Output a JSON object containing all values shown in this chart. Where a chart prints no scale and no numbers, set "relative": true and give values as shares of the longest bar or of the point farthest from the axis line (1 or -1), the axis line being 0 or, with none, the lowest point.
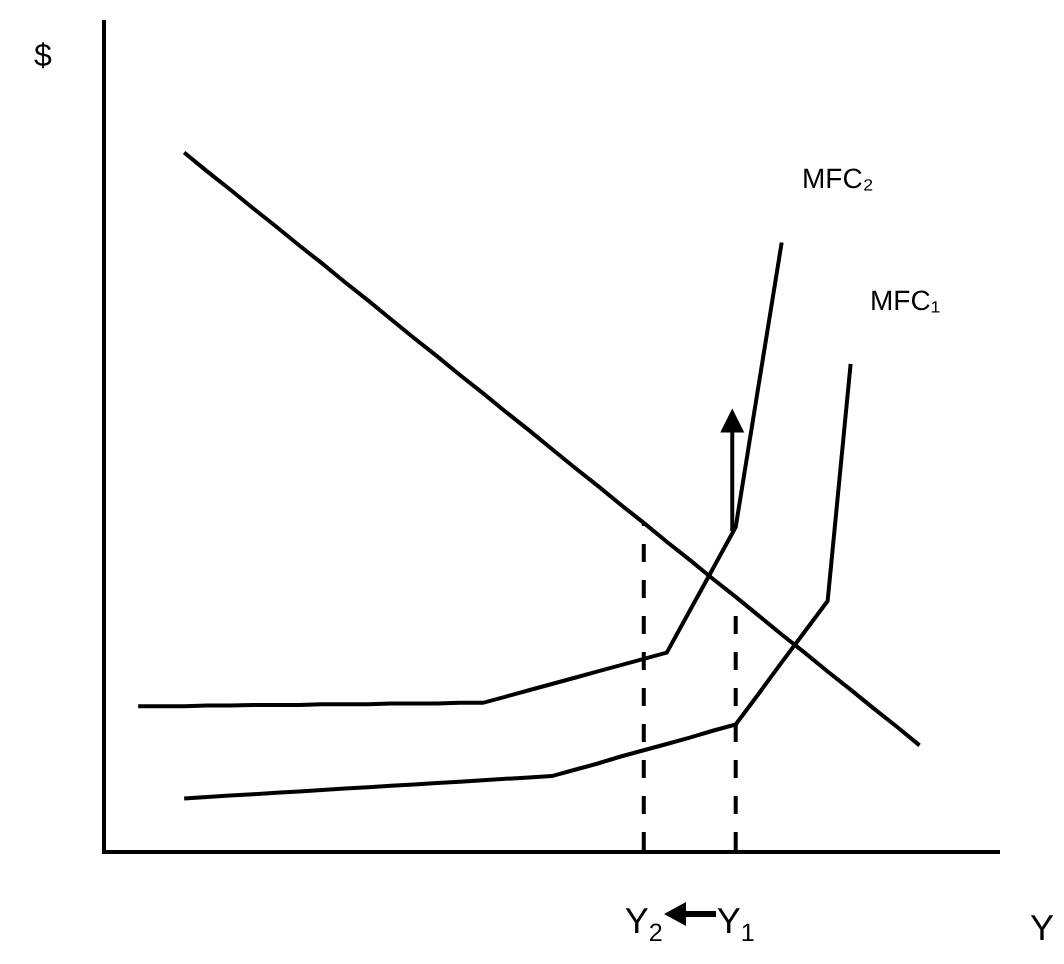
{
  "chart_data": {
    "type": "line",
    "relative": true,
    "xlabel": "Y",
    "ylabel": "$",
    "categories": [
      null,
      null,
      null,
      null,
      null,
      null,
      null,
      null,
      null,
      null,
      null,
      null,
      null,
      null,
      null,
      null,
      null,
      null,
      null,
      null,
      null,
      null,
      "Y$_{2}$",
      null,
      null,
      null,
      "Y$_{1}$",
      null,
      null,
      null,
      null,
      null,
      null,
      null,
      null,
      null,
      null,
      null
    ],
    "legend": false,
    "grid": false,
    "marker": "none",
    "series": [
      {
        "color": "#000000",
        "values": [
          null,
          null,
          1.0,
          0.973,
          0.947,
          0.92,
          0.894,
          0.867,
          0.841,
          0.814,
          0.788,
          0.761,
          0.734,
          0.708,
          0.681,
          0.655,
          0.628,
          0.602,
          0.575,
          0.548,
          0.522,
          0.495,
          0.469,
          0.442,
          0.416,
          0.389,
          0.363,
          0.336,
          0.309,
          0.283,
          0.256,
          0.23,
          0.203,
          0.177,
          0.15,
          null,
          null,
          null
        ]
      },
      {
        "name": "MFC₂",
        "color": "#000000",
        "values": [
          0.206,
          0.206,
          0.206,
          0.207,
          0.207,
          0.208,
          0.208,
          0.208,
          0.209,
          0.209,
          0.209,
          0.21,
          0.21,
          0.21,
          0.211,
          0.211,
          0.22,
          0.229,
          0.238,
          0.247,
          0.256,
          0.265,
          0.274,
          0.283,
          0.343,
          0.403,
          0.463,
          0.667,
          0.871,
          null,
          null,
          null,
          null,
          null,
          null,
          null,
          null,
          null
        ]
      },
      {
        "name": "MFC₁",
        "color": "#000000",
        "values": [
          null,
          null,
          0.074,
          0.076,
          0.078,
          0.08,
          0.082,
          0.084,
          0.086,
          0.088,
          0.09,
          0.092,
          0.094,
          0.096,
          0.098,
          0.1,
          0.102,
          0.104,
          0.106,
          0.115,
          0.124,
          0.134,
          0.143,
          0.152,
          0.161,
          0.171,
          0.18,
          0.224,
          0.269,
          0.313,
          0.357,
          0.697,
          null,
          null,
          null,
          null,
          null,
          null
        ]
      }
    ],
    "ref_lines": [
      {
        "axis": "x",
        "value": "Y$_{2}$",
        "line_style": "dashed",
        "color": "#000000"
      },
      {
        "axis": "x",
        "value": "Y$_{1}$",
        "line_style": "dashed",
        "color": "#000000"
      }
    ]
  }
}
